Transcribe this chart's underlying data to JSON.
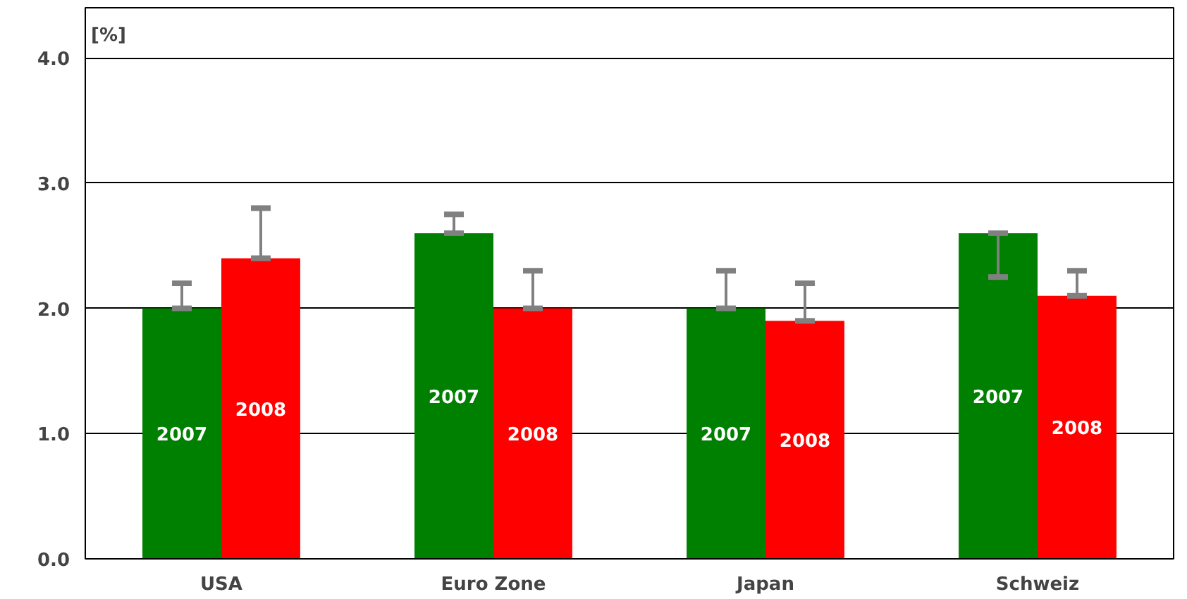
{
  "chart_data": {
    "type": "bar",
    "ylabel": "[%]",
    "categories": [
      "USA",
      "Euro Zone",
      "Japan",
      "Schweiz"
    ],
    "series": [
      {
        "name": "2007",
        "color": "#008000",
        "values": [
          2.0,
          2.6,
          2.0,
          2.6
        ],
        "errors": [
          [
            2.0,
            2.2
          ],
          [
            2.6,
            2.75
          ],
          [
            2.0,
            2.3
          ],
          [
            2.25,
            2.6
          ]
        ]
      },
      {
        "name": "2008",
        "color": "#ff0000",
        "values": [
          2.4,
          2.0,
          1.9,
          2.1
        ],
        "errors": [
          [
            2.4,
            2.8
          ],
          [
            2.0,
            2.3
          ],
          [
            1.9,
            2.2
          ],
          [
            2.1,
            2.3
          ]
        ]
      }
    ],
    "ylim": [
      0,
      4.4
    ],
    "yticks": [
      {
        "value": 0,
        "label": "0.0"
      },
      {
        "value": 1,
        "label": "1.0"
      },
      {
        "value": 2,
        "label": "2.0"
      },
      {
        "value": 3,
        "label": "3.0"
      },
      {
        "value": 4,
        "label": "4.0"
      }
    ],
    "grid": "y"
  }
}
